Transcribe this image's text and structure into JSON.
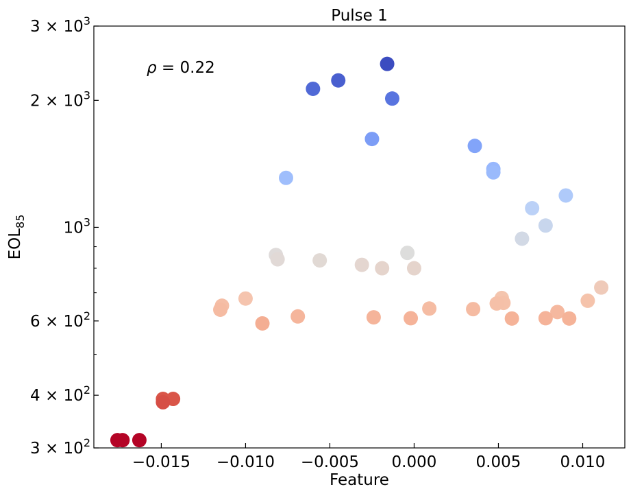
{
  "chart_data": {
    "type": "scatter",
    "title": "Pulse 1",
    "xlabel": "Feature",
    "ylabel_base": "EOL",
    "ylabel_sub": "85",
    "annotation": {
      "symbol": "ρ",
      "text": " = 0.22"
    },
    "xlim": [
      -0.019,
      0.0125
    ],
    "ylim": [
      300,
      3000
    ],
    "yscale": "log",
    "grid": false,
    "x_ticks": [
      {
        "value": -0.015,
        "label": "−0.015"
      },
      {
        "value": -0.01,
        "label": "−0.010"
      },
      {
        "value": -0.005,
        "label": "−0.005"
      },
      {
        "value": 0.0,
        "label": "0.000"
      },
      {
        "value": 0.005,
        "label": "0.005"
      },
      {
        "value": 0.01,
        "label": "0.010"
      }
    ],
    "y_ticks": [
      {
        "value": 300,
        "mant": "3",
        "exp": "2"
      },
      {
        "value": 400,
        "mant": "4",
        "exp": "2"
      },
      {
        "value": 600,
        "mant": "6",
        "exp": "2"
      },
      {
        "value": 1000,
        "plain": "10",
        "exp": "3"
      },
      {
        "value": 2000,
        "mant": "2",
        "exp": "3"
      },
      {
        "value": 3000,
        "mant": "3",
        "exp": "3"
      }
    ],
    "y_minor_ticks": [
      500,
      700,
      800,
      900
    ],
    "colormap": "coolwarm (reversed: high EOL = blue, low EOL = red)",
    "points": [
      {
        "x": -0.0016,
        "y": 2440
      },
      {
        "x": -0.0045,
        "y": 2230
      },
      {
        "x": -0.006,
        "y": 2130
      },
      {
        "x": -0.0013,
        "y": 2020
      },
      {
        "x": -0.0025,
        "y": 1620
      },
      {
        "x": 0.0036,
        "y": 1560
      },
      {
        "x": 0.0047,
        "y": 1375
      },
      {
        "x": 0.0047,
        "y": 1350
      },
      {
        "x": -0.0076,
        "y": 1310
      },
      {
        "x": 0.009,
        "y": 1190
      },
      {
        "x": 0.007,
        "y": 1110
      },
      {
        "x": 0.0078,
        "y": 1010
      },
      {
        "x": 0.0064,
        "y": 940
      },
      {
        "x": -0.0004,
        "y": 870
      },
      {
        "x": -0.0082,
        "y": 860
      },
      {
        "x": -0.0081,
        "y": 840
      },
      {
        "x": -0.0056,
        "y": 835
      },
      {
        "x": -0.0031,
        "y": 815
      },
      {
        "x": -0.0019,
        "y": 800
      },
      {
        "x": 0.0,
        "y": 800
      },
      {
        "x": 0.0111,
        "y": 720
      },
      {
        "x": 0.0052,
        "y": 680
      },
      {
        "x": 0.0103,
        "y": 670
      },
      {
        "x": -0.01,
        "y": 678
      },
      {
        "x": 0.0049,
        "y": 660
      },
      {
        "x": 0.0053,
        "y": 662
      },
      {
        "x": -0.0114,
        "y": 652
      },
      {
        "x": -0.0115,
        "y": 638
      },
      {
        "x": 0.0009,
        "y": 642
      },
      {
        "x": 0.0035,
        "y": 640
      },
      {
        "x": 0.0085,
        "y": 630
      },
      {
        "x": -0.0069,
        "y": 615
      },
      {
        "x": -0.0024,
        "y": 612
      },
      {
        "x": -0.0002,
        "y": 609
      },
      {
        "x": 0.0058,
        "y": 608
      },
      {
        "x": 0.0078,
        "y": 609
      },
      {
        "x": 0.0092,
        "y": 608
      },
      {
        "x": -0.009,
        "y": 592
      },
      {
        "x": -0.0149,
        "y": 392
      },
      {
        "x": -0.0143,
        "y": 392
      },
      {
        "x": -0.0149,
        "y": 385
      },
      {
        "x": -0.0176,
        "y": 313
      },
      {
        "x": -0.0173,
        "y": 313
      },
      {
        "x": -0.0163,
        "y": 313
      }
    ],
    "colors": {
      "axis": "#000000",
      "background": "#ffffff"
    }
  }
}
